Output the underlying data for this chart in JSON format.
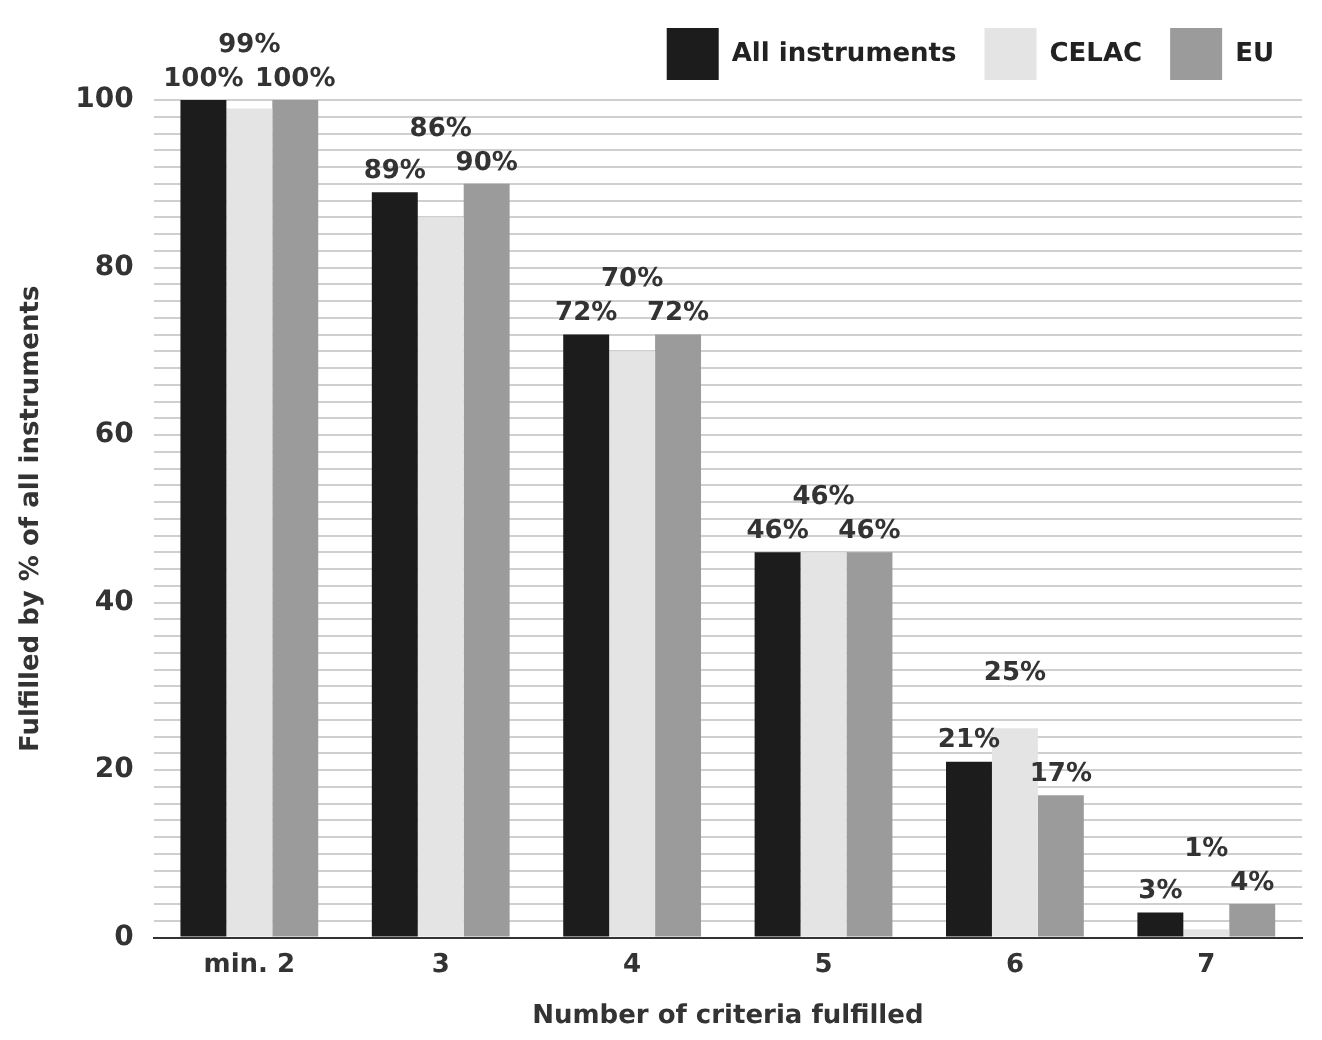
{
  "chart_data": {
    "type": "bar",
    "xlabel": "Number of criteria fulfilled",
    "ylabel": "Fulfilled by % of all instruments",
    "categories": [
      "min. 2",
      "3",
      "4",
      "5",
      "6",
      "7"
    ],
    "series": [
      {
        "name": "All instruments",
        "color": "#1c1c1c",
        "values": [
          100,
          89,
          72,
          46,
          21,
          3
        ]
      },
      {
        "name": "CELAC",
        "color": "#e4e4e4",
        "values": [
          99,
          86,
          70,
          46,
          25,
          1
        ]
      },
      {
        "name": "EU",
        "color": "#9b9b9b",
        "values": [
          100,
          90,
          72,
          46,
          17,
          4
        ]
      }
    ],
    "value_labels": [
      [
        "100%",
        "89%",
        "72%",
        "46%",
        "21%",
        "3%"
      ],
      [
        "99%",
        "86%",
        "70%",
        "46%",
        "25%",
        "1%"
      ],
      [
        "100%",
        "90%",
        "72%",
        "46%",
        "17%",
        "4%"
      ]
    ],
    "ylim": [
      0,
      100
    ],
    "yticks": [
      0,
      {
        "value": 2,
        "label": null
      },
      {
        "value": 4,
        "label": null
      },
      {
        "value": 6,
        "label": null
      },
      {
        "value": 8,
        "label": null
      },
      {
        "value": 10,
        "label": null
      },
      {
        "value": 12,
        "label": null
      },
      {
        "value": 14,
        "label": null
      },
      {
        "value": 16,
        "label": null
      },
      {
        "value": 18,
        "label": null
      },
      20,
      {
        "value": 22,
        "label": null
      },
      {
        "value": 24,
        "label": null
      },
      {
        "value": 26,
        "label": null
      },
      {
        "value": 28,
        "label": null
      },
      {
        "value": 30,
        "label": null
      },
      {
        "value": 32,
        "label": null
      },
      {
        "value": 34,
        "label": null
      },
      {
        "value": 36,
        "label": null
      },
      {
        "value": 38,
        "label": null
      },
      40,
      {
        "value": 42,
        "label": null
      },
      {
        "value": 44,
        "label": null
      },
      {
        "value": 46,
        "label": null
      },
      {
        "value": 48,
        "label": null
      },
      {
        "value": 50,
        "label": null
      },
      {
        "value": 52,
        "label": null
      },
      {
        "value": 54,
        "label": null
      },
      {
        "value": 56,
        "label": null
      },
      {
        "value": 58,
        "label": null
      },
      60,
      {
        "value": 62,
        "label": null
      },
      {
        "value": 64,
        "label": null
      },
      {
        "value": 66,
        "label": null
      },
      {
        "value": 68,
        "label": null
      },
      {
        "value": 70,
        "label": null
      },
      {
        "value": 72,
        "label": null
      },
      {
        "value": 74,
        "label": null
      },
      {
        "value": 76,
        "label": null
      },
      {
        "value": 78,
        "label": null
      },
      80,
      {
        "value": 82,
        "label": null
      },
      {
        "value": 84,
        "label": null
      },
      {
        "value": 86,
        "label": null
      },
      {
        "value": 88,
        "label": null
      },
      {
        "value": 90,
        "label": null
      },
      {
        "value": 92,
        "label": null
      },
      {
        "value": 94,
        "label": null
      },
      {
        "value": 96,
        "label": null
      },
      {
        "value": 98,
        "label": null
      },
      100
    ],
    "grid": "y",
    "legend": "top right"
  }
}
